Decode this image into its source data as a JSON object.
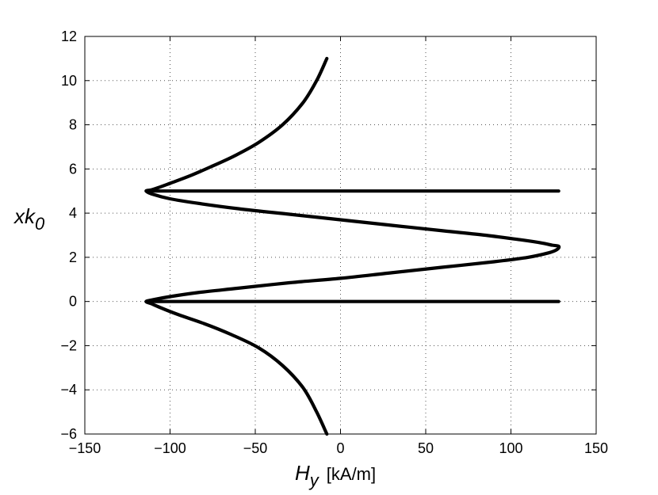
{
  "chart_data": {
    "type": "line",
    "xlim": [
      -150,
      150
    ],
    "ylim": [
      -6,
      12
    ],
    "xticks": [
      -150,
      -100,
      -50,
      0,
      50,
      100,
      150
    ],
    "yticks": [
      -6,
      -4,
      -2,
      0,
      2,
      4,
      6,
      8,
      10,
      12
    ],
    "xlabel": {
      "main": "H",
      "sub": "y",
      "unit": "[kA/m]"
    },
    "ylabel": {
      "main": "xk",
      "sub": "0"
    },
    "grid": true,
    "legend": "none",
    "series": [
      {
        "style": "solid-black",
        "x": [
          -8,
          -14,
          -22,
          -34,
          -48,
          -62,
          -76,
          -88,
          -100,
          -107,
          -111,
          -114,
          -110,
          -100,
          -84,
          -60,
          -30,
          0,
          30,
          60,
          85,
          105,
          118,
          124,
          128,
          127,
          122,
          110,
          90,
          60,
          30,
          0,
          -30,
          -60,
          -84,
          -100,
          -110,
          -114,
          -111,
          -105,
          -95,
          -80,
          -64,
          -48,
          -34,
          -22,
          -14,
          -8
        ],
        "y": [
          11.0,
          10.0,
          9.0,
          8.0,
          7.2,
          6.6,
          6.1,
          5.7,
          5.35,
          5.15,
          5.05,
          5.0,
          4.85,
          4.65,
          4.45,
          4.2,
          3.95,
          3.7,
          3.45,
          3.2,
          3.0,
          2.8,
          2.65,
          2.55,
          2.5,
          2.35,
          2.2,
          2.0,
          1.8,
          1.55,
          1.3,
          1.05,
          0.85,
          0.6,
          0.4,
          0.22,
          0.08,
          0.0,
          -0.1,
          -0.3,
          -0.6,
          -1.0,
          -1.5,
          -2.1,
          -2.9,
          -3.9,
          -5.0,
          -6.0
        ]
      },
      {
        "style": "solid-black",
        "x": [
          -114,
          128
        ],
        "y": [
          5,
          5
        ]
      },
      {
        "style": "solid-black",
        "x": [
          -114,
          128
        ],
        "y": [
          0,
          0
        ]
      }
    ]
  }
}
